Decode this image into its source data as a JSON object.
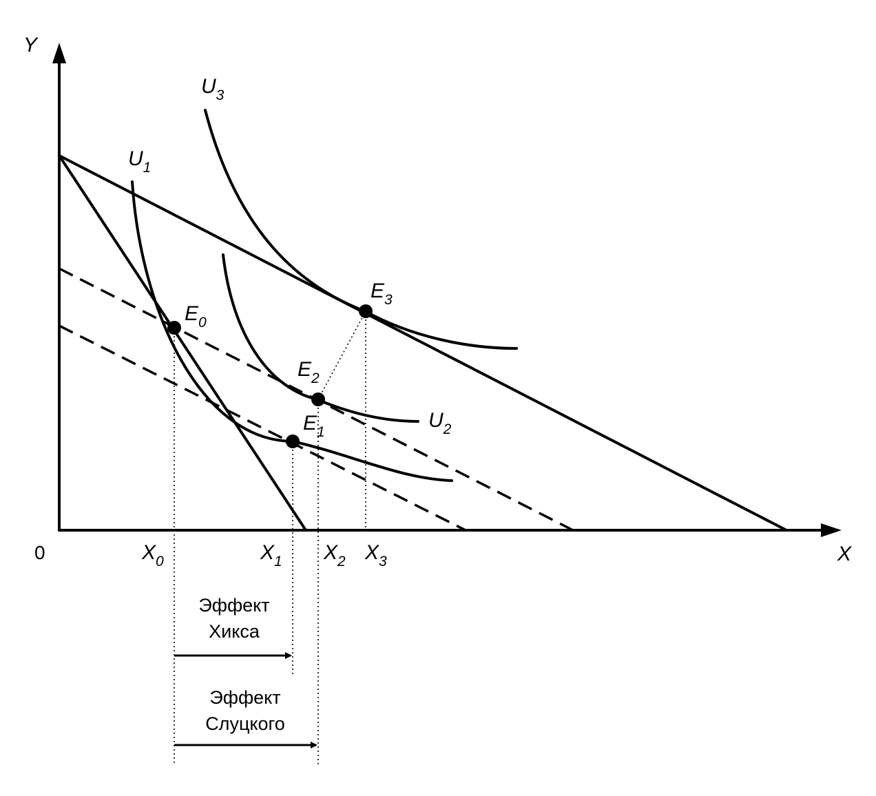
{
  "axes": {
    "y_label": "Y",
    "x_label": "X",
    "origin_label": "0"
  },
  "curves": {
    "u1": {
      "base": "U",
      "sub": "1"
    },
    "u2": {
      "base": "U",
      "sub": "2"
    },
    "u3": {
      "base": "U",
      "sub": "3"
    }
  },
  "points": {
    "e0": {
      "base": "E",
      "sub": "0"
    },
    "e1": {
      "base": "E",
      "sub": "1"
    },
    "e2": {
      "base": "E",
      "sub": "2"
    },
    "e3": {
      "base": "E",
      "sub": "3"
    }
  },
  "x_ticks": {
    "x0": {
      "base": "X",
      "sub": "0"
    },
    "x1": {
      "base": "X",
      "sub": "1"
    },
    "x2": {
      "base": "X",
      "sub": "2"
    },
    "x3": {
      "base": "X",
      "sub": "3"
    }
  },
  "effects": {
    "hicks": {
      "line1": "Эффект",
      "line2": "Хикса"
    },
    "slutsky": {
      "line1": "Эффект",
      "line2": "Слуцкого"
    }
  }
}
